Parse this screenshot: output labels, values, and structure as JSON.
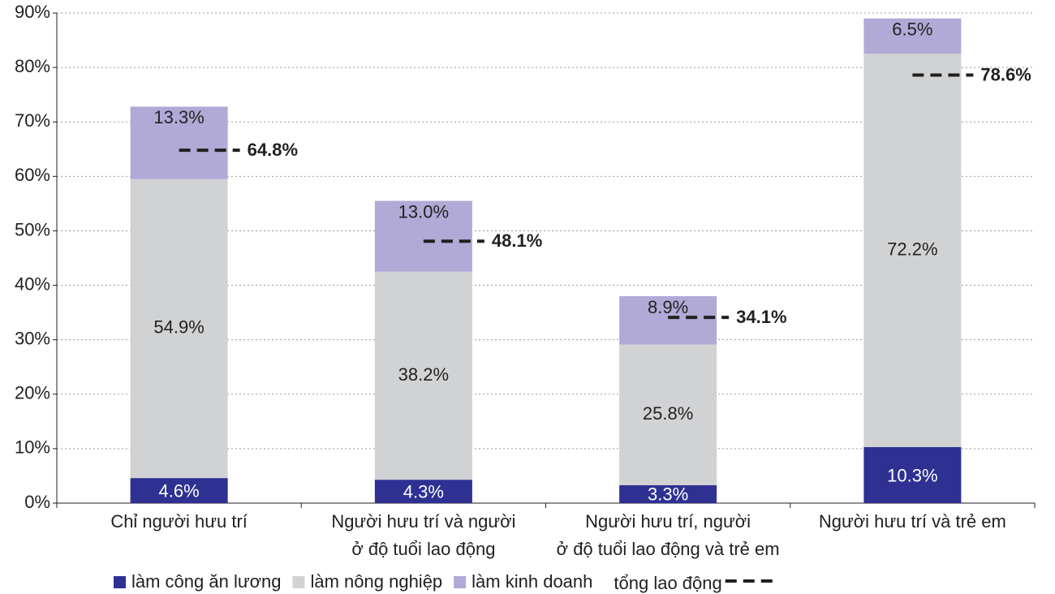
{
  "chart_data": {
    "type": "bar",
    "stacked": true,
    "categories": [
      "Chỉ người hưu trí",
      "Người hưu trí và người\nở độ tuổi lao động",
      "Người hưu trí, người\nở độ tuổi lao động và trẻ em",
      "Người hưu trí và trẻ em"
    ],
    "series": [
      {
        "name": "làm công ăn lương",
        "color": "#2e3192",
        "values": [
          4.6,
          4.3,
          3.3,
          10.3
        ],
        "value_labels": [
          "4.6%",
          "4.3%",
          "3.3%",
          "10.3%"
        ]
      },
      {
        "name": "làm nông nghiệp",
        "color": "#d1d2d4",
        "values": [
          54.9,
          38.2,
          25.8,
          72.2
        ],
        "value_labels": [
          "54.9%",
          "38.2%",
          "25.8%",
          "72.2%"
        ]
      },
      {
        "name": "làm kinh doanh",
        "color": "#b1a9d6",
        "values": [
          13.3,
          13.0,
          8.9,
          6.5
        ],
        "value_labels": [
          "13.3%",
          "13.0%",
          "8.9%",
          "6.5%"
        ]
      }
    ],
    "total": {
      "name": "tổng lao động",
      "color": "#231f20",
      "values": [
        64.8,
        48.1,
        34.1,
        78.6
      ],
      "value_labels": [
        "64.8%",
        "48.1%",
        "34.1%",
        "78.6%"
      ]
    },
    "ylim": [
      0,
      90
    ],
    "yticks": [
      {
        "value": 0,
        "label": "0%"
      },
      {
        "value": 10,
        "label": "10%"
      },
      {
        "value": 20,
        "label": "20%"
      },
      {
        "value": 30,
        "label": "30%"
      },
      {
        "value": 40,
        "label": "40%"
      },
      {
        "value": 50,
        "label": "50%"
      },
      {
        "value": 60,
        "label": "60%"
      },
      {
        "value": 70,
        "label": "70%"
      },
      {
        "value": 80,
        "label": "80%"
      },
      {
        "value": 90,
        "label": "90%"
      }
    ],
    "grid": true
  }
}
